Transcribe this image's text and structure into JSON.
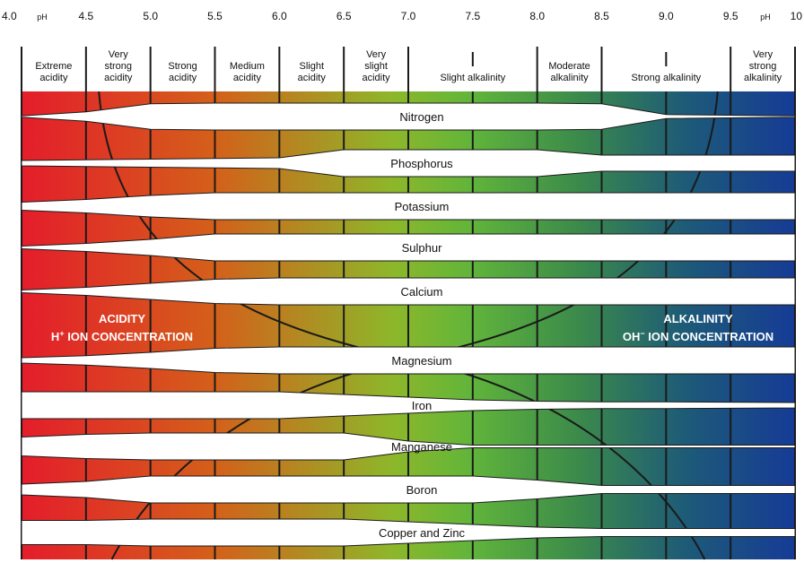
{
  "ph_scale": {
    "ticks": [
      {
        "value": 4.0,
        "label": "4.0"
      },
      {
        "value": 4.5,
        "label": "4.5"
      },
      {
        "value": 5.0,
        "label": "5.0"
      },
      {
        "value": 5.5,
        "label": "5.5"
      },
      {
        "value": 6.0,
        "label": "6.0"
      },
      {
        "value": 6.5,
        "label": "6.5"
      },
      {
        "value": 7.0,
        "label": "7.0"
      },
      {
        "value": 7.5,
        "label": "7.5"
      },
      {
        "value": 8.0,
        "label": "8.0"
      },
      {
        "value": 8.5,
        "label": "8.5"
      },
      {
        "value": 9.0,
        "label": "9.0"
      },
      {
        "value": 9.5,
        "label": "9.5"
      },
      {
        "value": 10,
        "label": "10"
      }
    ],
    "unit_left": "pH",
    "unit_right": "pH"
  },
  "categories": [
    {
      "from": 4.0,
      "to": 4.5,
      "lines": [
        "Extreme",
        "acidity"
      ]
    },
    {
      "from": 4.5,
      "to": 5.0,
      "lines": [
        "Very",
        "strong",
        "acidity"
      ]
    },
    {
      "from": 5.0,
      "to": 5.5,
      "lines": [
        "Strong",
        "acidity"
      ]
    },
    {
      "from": 5.5,
      "to": 6.0,
      "lines": [
        "Medium",
        "acidity"
      ]
    },
    {
      "from": 6.0,
      "to": 6.5,
      "lines": [
        "Slight",
        "acidity"
      ]
    },
    {
      "from": 6.5,
      "to": 7.0,
      "lines": [
        "Very",
        "slight",
        "acidity"
      ]
    },
    {
      "from": 7.0,
      "to": 8.0,
      "lines": [
        "Slight alkalinity"
      ]
    },
    {
      "from": 8.0,
      "to": 8.5,
      "lines": [
        "Moderate",
        "alkalinity"
      ]
    },
    {
      "from": 8.5,
      "to": 9.5,
      "lines": [
        "Strong alkalinity"
      ]
    },
    {
      "from": 9.5,
      "to": 10.0,
      "lines": [
        "Very",
        "strong",
        "alkalinity"
      ]
    }
  ],
  "nutrients": [
    {
      "name": "Nitrogen",
      "width": [
        0.05,
        0.35,
        0.95,
        1.0,
        1.0,
        1.0,
        1.0,
        1.0,
        1.0,
        0.95,
        0.15,
        0.05
      ]
    },
    {
      "name": "Phosphorus",
      "width": [
        0.2,
        0.25,
        0.3,
        0.35,
        0.4,
        1.0,
        1.0,
        1.0,
        1.0,
        0.6,
        0.6,
        0.6
      ]
    },
    {
      "name": "Potassium",
      "width": [
        0.3,
        0.5,
        0.8,
        1.0,
        1.0,
        1.0,
        1.0,
        1.0,
        1.0,
        1.0,
        1.0,
        1.0
      ]
    },
    {
      "name": "Sulphur",
      "width": [
        0.1,
        0.3,
        0.6,
        1.0,
        1.0,
        1.0,
        1.0,
        1.0,
        1.0,
        1.0,
        1.0,
        1.0
      ]
    },
    {
      "name": "Calcium",
      "width": [
        0.1,
        0.3,
        0.6,
        0.9,
        1.0,
        1.0,
        1.0,
        1.0,
        1.0,
        1.0,
        1.0,
        1.0
      ]
    },
    {
      "name": "Magnesium",
      "width": [
        0.2,
        0.35,
        0.6,
        0.9,
        1.0,
        1.0,
        1.0,
        1.0,
        1.0,
        1.0,
        1.0,
        1.0
      ]
    },
    {
      "name": "Iron",
      "width": [
        1.0,
        1.0,
        1.0,
        1.0,
        1.0,
        0.8,
        0.6,
        0.4,
        0.3,
        0.25,
        0.25,
        0.2
      ]
    },
    {
      "name": "Manganese",
      "width": [
        0.7,
        0.9,
        1.0,
        1.0,
        1.0,
        1.0,
        0.4,
        0.1,
        0.1,
        0.1,
        0.1,
        0.1
      ]
    },
    {
      "name": "Boron",
      "width": [
        0.4,
        0.6,
        1.0,
        1.0,
        1.0,
        1.0,
        1.0,
        1.0,
        0.7,
        0.3,
        0.3,
        0.3
      ]
    },
    {
      "name": "Copper and Zinc",
      "width": [
        0.9,
        0.9,
        1.0,
        1.0,
        1.0,
        1.0,
        0.8,
        0.6,
        0.4,
        0.3,
        0.3,
        0.3
      ]
    }
  ],
  "acidity_label": {
    "title": "ACIDITY",
    "ion": "H",
    "ion_charge": "+",
    "rest": " ION CONCENTRATION"
  },
  "alkalinity_label": {
    "title": "ALKALINITY",
    "ion": "OH",
    "ion_charge": "−",
    "rest": " ION CONCENTRATION"
  },
  "colors": {
    "acid": "#e41d2b",
    "acid_orange": "#d4601a",
    "mid_yellow": "#8db72a",
    "neutral_green": "#61b53a",
    "alk_green": "#3b8a4b",
    "alk_teal": "#1d5a78",
    "alk_blue": "#163b96"
  }
}
